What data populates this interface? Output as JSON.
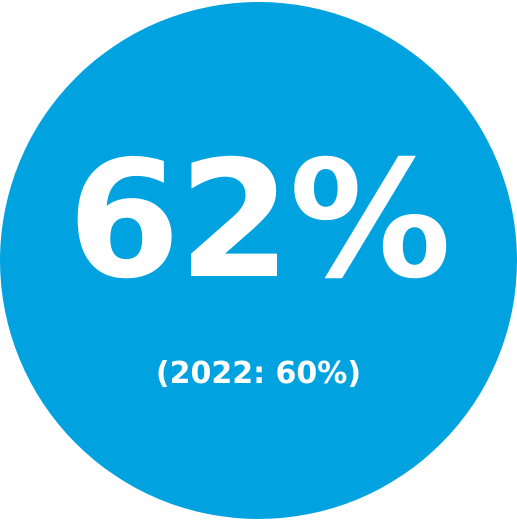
{
  "stat": {
    "value": "62%",
    "comparison": "(2022: 60%)"
  },
  "colors": {
    "circle": "#00A3E0",
    "text": "#ffffff",
    "background": "#ffffff"
  }
}
